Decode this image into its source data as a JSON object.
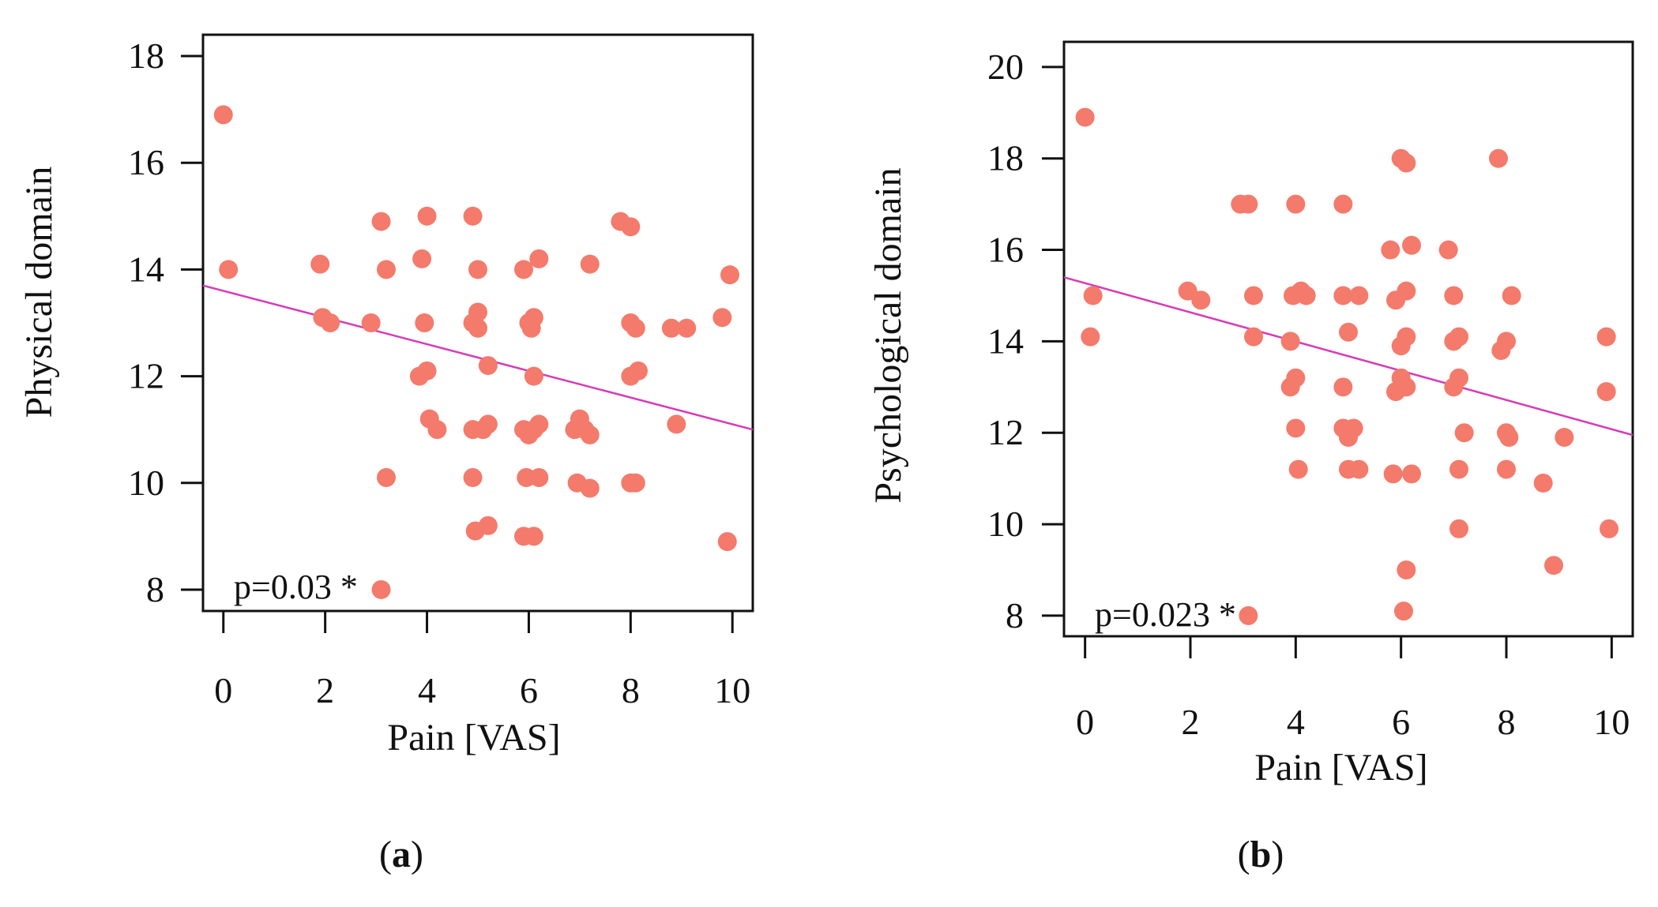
{
  "colors": {
    "point": "#f47a6b",
    "trend": "#d63bb8",
    "axis": "#111111"
  },
  "chart_data": [
    {
      "type": "scatter",
      "panel_label": "a",
      "caption_open": "(",
      "caption_close": ")",
      "xlabel": "Pain [VAS]",
      "ylabel": "Physical domain",
      "xlim": [
        -0.4,
        10.4
      ],
      "ylim": [
        7.6,
        18.4
      ],
      "xticks": [
        0,
        2,
        4,
        6,
        8,
        10
      ],
      "yticks": [
        8,
        10,
        12,
        14,
        16,
        18
      ],
      "annotation": "p=0.03 *",
      "trend": {
        "x": [
          -0.4,
          10.4
        ],
        "y": [
          13.7,
          11.0
        ]
      },
      "points": [
        [
          0,
          16.9
        ],
        [
          0.1,
          14.0
        ],
        [
          1.9,
          14.1
        ],
        [
          2.1,
          13.0
        ],
        [
          1.95,
          13.1
        ],
        [
          2.9,
          13.0
        ],
        [
          3.1,
          14.9
        ],
        [
          3.2,
          14.0
        ],
        [
          3.2,
          10.1
        ],
        [
          3.1,
          8.0
        ],
        [
          3.9,
          14.2
        ],
        [
          4.0,
          15.0
        ],
        [
          3.95,
          13.0
        ],
        [
          3.85,
          12.0
        ],
        [
          4.0,
          12.1
        ],
        [
          4.05,
          11.2
        ],
        [
          4.2,
          11.0
        ],
        [
          4.9,
          15.0
        ],
        [
          5.0,
          14.0
        ],
        [
          4.9,
          13.0
        ],
        [
          5.0,
          13.2
        ],
        [
          5.0,
          12.9
        ],
        [
          5.2,
          12.2
        ],
        [
          4.9,
          11.0
        ],
        [
          5.1,
          11.0
        ],
        [
          5.2,
          11.1
        ],
        [
          4.9,
          10.1
        ],
        [
          4.95,
          9.1
        ],
        [
          5.2,
          9.2
        ],
        [
          5.9,
          14.0
        ],
        [
          6.2,
          14.2
        ],
        [
          6.0,
          13.0
        ],
        [
          6.1,
          13.1
        ],
        [
          6.05,
          12.9
        ],
        [
          6.1,
          12.0
        ],
        [
          5.9,
          11.0
        ],
        [
          6.1,
          11.0
        ],
        [
          6.0,
          10.9
        ],
        [
          6.2,
          11.1
        ],
        [
          5.95,
          10.1
        ],
        [
          6.2,
          10.1
        ],
        [
          5.9,
          9.0
        ],
        [
          6.1,
          9.0
        ],
        [
          7.2,
          14.1
        ],
        [
          6.9,
          11.0
        ],
        [
          7.0,
          11.2
        ],
        [
          7.1,
          11.0
        ],
        [
          7.2,
          10.9
        ],
        [
          6.95,
          10.0
        ],
        [
          7.2,
          9.9
        ],
        [
          7.8,
          14.9
        ],
        [
          8.0,
          14.8
        ],
        [
          8.0,
          13.0
        ],
        [
          8.1,
          12.9
        ],
        [
          8.0,
          12.0
        ],
        [
          8.15,
          12.1
        ],
        [
          8.0,
          10.0
        ],
        [
          8.1,
          10.0
        ],
        [
          8.8,
          12.9
        ],
        [
          9.1,
          12.9
        ],
        [
          8.9,
          11.1
        ],
        [
          9.8,
          13.1
        ],
        [
          9.95,
          13.9
        ],
        [
          9.9,
          8.9
        ]
      ]
    },
    {
      "type": "scatter",
      "panel_label": "b",
      "caption_open": "(",
      "caption_close": ")",
      "xlabel": "Pain [VAS]",
      "ylabel": "Psychological domain",
      "xlim": [
        -0.4,
        10.4
      ],
      "ylim": [
        7.55,
        20.55
      ],
      "xticks": [
        0,
        2,
        4,
        6,
        8,
        10
      ],
      "yticks": [
        8,
        10,
        12,
        14,
        16,
        18,
        20
      ],
      "annotation": "p=0.023 *",
      "trend": {
        "x": [
          -0.4,
          10.4
        ],
        "y": [
          15.4,
          11.95
        ]
      },
      "points": [
        [
          0,
          18.9
        ],
        [
          0.15,
          15.0
        ],
        [
          0.1,
          14.1
        ],
        [
          1.95,
          15.1
        ],
        [
          2.2,
          14.9
        ],
        [
          2.95,
          17.0
        ],
        [
          3.1,
          17.0
        ],
        [
          3.2,
          15.0
        ],
        [
          3.2,
          14.1
        ],
        [
          3.1,
          8.0
        ],
        [
          4.0,
          17.0
        ],
        [
          3.95,
          15.0
        ],
        [
          4.2,
          15.0
        ],
        [
          4.1,
          15.1
        ],
        [
          3.9,
          14.0
        ],
        [
          4.0,
          13.2
        ],
        [
          3.9,
          13.0
        ],
        [
          4.0,
          12.1
        ],
        [
          4.05,
          11.2
        ],
        [
          4.9,
          17.0
        ],
        [
          4.9,
          15.0
        ],
        [
          5.2,
          15.0
        ],
        [
          5.0,
          14.2
        ],
        [
          4.9,
          13.0
        ],
        [
          4.9,
          12.1
        ],
        [
          5.1,
          12.1
        ],
        [
          5.0,
          11.9
        ],
        [
          5.0,
          11.2
        ],
        [
          5.2,
          11.2
        ],
        [
          5.8,
          16.0
        ],
        [
          6.0,
          18.0
        ],
        [
          6.1,
          17.9
        ],
        [
          6.2,
          16.1
        ],
        [
          6.1,
          15.1
        ],
        [
          5.9,
          14.9
        ],
        [
          6.1,
          14.1
        ],
        [
          6.0,
          13.9
        ],
        [
          6.1,
          13.0
        ],
        [
          5.9,
          12.9
        ],
        [
          6.0,
          13.2
        ],
        [
          5.85,
          11.1
        ],
        [
          6.2,
          11.1
        ],
        [
          6.1,
          9.0
        ],
        [
          6.05,
          8.1
        ],
        [
          6.9,
          16.0
        ],
        [
          7.0,
          15.0
        ],
        [
          7.0,
          14.0
        ],
        [
          7.1,
          14.1
        ],
        [
          7.0,
          13.0
        ],
        [
          7.1,
          13.2
        ],
        [
          7.2,
          12.0
        ],
        [
          7.1,
          11.2
        ],
        [
          7.1,
          9.9
        ],
        [
          7.85,
          18.0
        ],
        [
          8.1,
          15.0
        ],
        [
          8.0,
          14.0
        ],
        [
          7.9,
          13.8
        ],
        [
          8.0,
          12.0
        ],
        [
          8.05,
          11.9
        ],
        [
          8.0,
          11.2
        ],
        [
          8.7,
          10.9
        ],
        [
          8.9,
          9.1
        ],
        [
          9.1,
          11.9
        ],
        [
          9.9,
          14.1
        ],
        [
          9.9,
          12.9
        ],
        [
          9.95,
          9.9
        ]
      ]
    }
  ]
}
